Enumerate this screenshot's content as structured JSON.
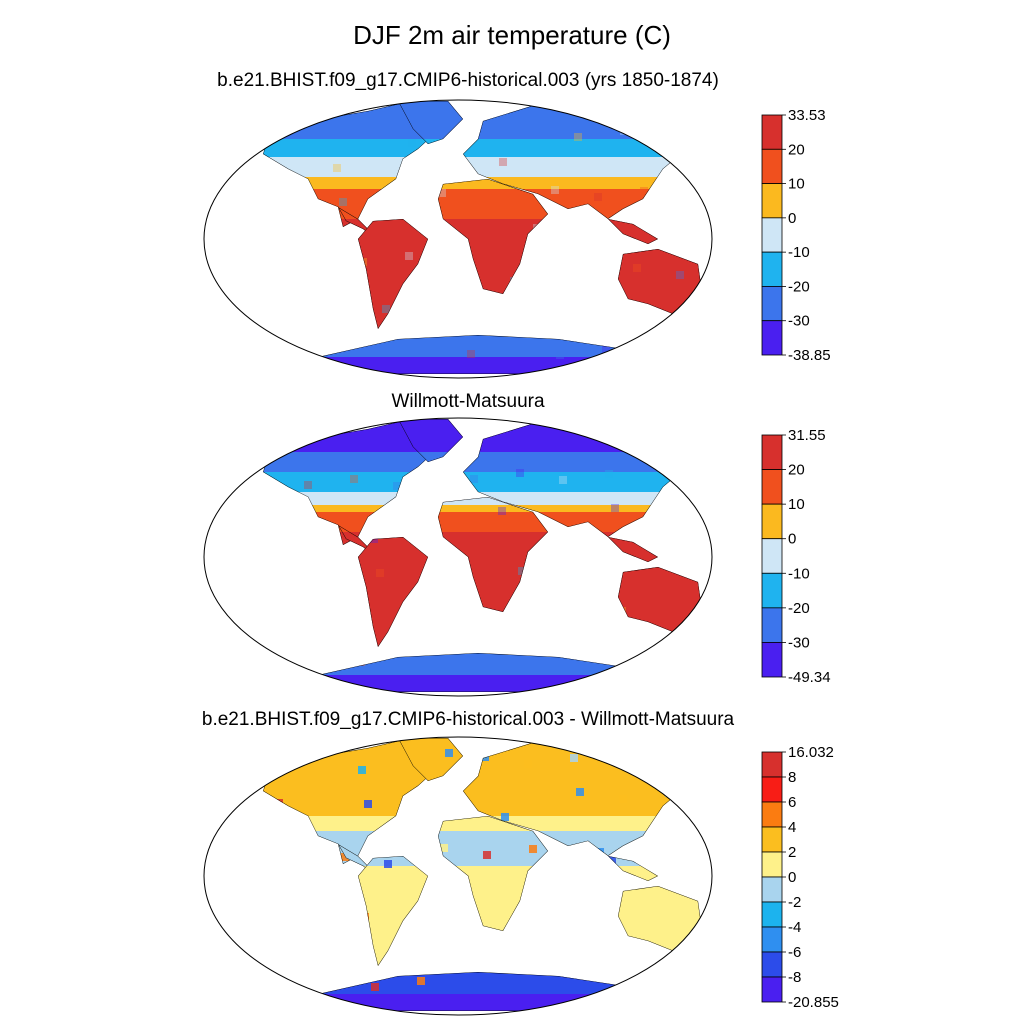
{
  "title": "DJF 2m air temperature (C)",
  "panels": [
    {
      "id": "model",
      "title": "b.e21.BHIST.f09_g17.CMIP6-historical.003 (yrs 1850-1874)",
      "colorbar_labels": [
        "33.53",
        "20",
        "10",
        "0",
        "-10",
        "-20",
        "-30",
        "-38.85"
      ],
      "colorbar_colors": [
        "#d7302d",
        "#f0501e",
        "#fbb91f",
        "#cfe6f6",
        "#1fb3ef",
        "#3c75ec",
        "#4a1ff0"
      ],
      "range": [
        -38.85,
        33.53
      ]
    },
    {
      "id": "obs",
      "title": "Willmott-Matsuura",
      "colorbar_labels": [
        "31.55",
        "20",
        "10",
        "0",
        "-10",
        "-20",
        "-30",
        "-49.34"
      ],
      "colorbar_colors": [
        "#d7302d",
        "#f0501e",
        "#fbb91f",
        "#cfe6f6",
        "#1fb3ef",
        "#3c75ec",
        "#4a1ff0"
      ],
      "range": [
        -49.34,
        31.55
      ]
    },
    {
      "id": "diff",
      "title": "b.e21.BHIST.f09_g17.CMIP6-historical.003 - Willmott-Matsuura",
      "colorbar_labels": [
        "16.032",
        "8",
        "6",
        "4",
        "2",
        "0",
        "-2",
        "-4",
        "-6",
        "-8",
        "-20.855"
      ],
      "colorbar_colors": [
        "#d7302d",
        "#f81d16",
        "#fb7c11",
        "#fbbe1f",
        "#fef18a",
        "#a9d4ee",
        "#1cb3ee",
        "#2f8ff0",
        "#2c4cea",
        "#4a1ff0"
      ],
      "range": [
        -20.855,
        16.032
      ]
    }
  ],
  "chart_data": {
    "type": "heatmap",
    "title": "DJF 2m air temperature (C)",
    "subplots": [
      {
        "title": "b.e21.BHIST.f09_g17.CMIP6-historical.003 (yrs 1850-1874)",
        "colorbar": {
          "min": -38.85,
          "max": 33.53,
          "levels": [
            -30,
            -20,
            -10,
            0,
            10,
            20
          ]
        }
      },
      {
        "title": "Willmott-Matsuura",
        "colorbar": {
          "min": -49.34,
          "max": 31.55,
          "levels": [
            -30,
            -20,
            -10,
            0,
            10,
            20
          ]
        }
      },
      {
        "title": "b.e21.BHIST.f09_g17.CMIP6-historical.003 - Willmott-Matsuura",
        "colorbar": {
          "min": -20.855,
          "max": 16.032,
          "levels": [
            -8,
            -6,
            -4,
            -2,
            0,
            2,
            4,
            6,
            8
          ]
        }
      }
    ]
  }
}
